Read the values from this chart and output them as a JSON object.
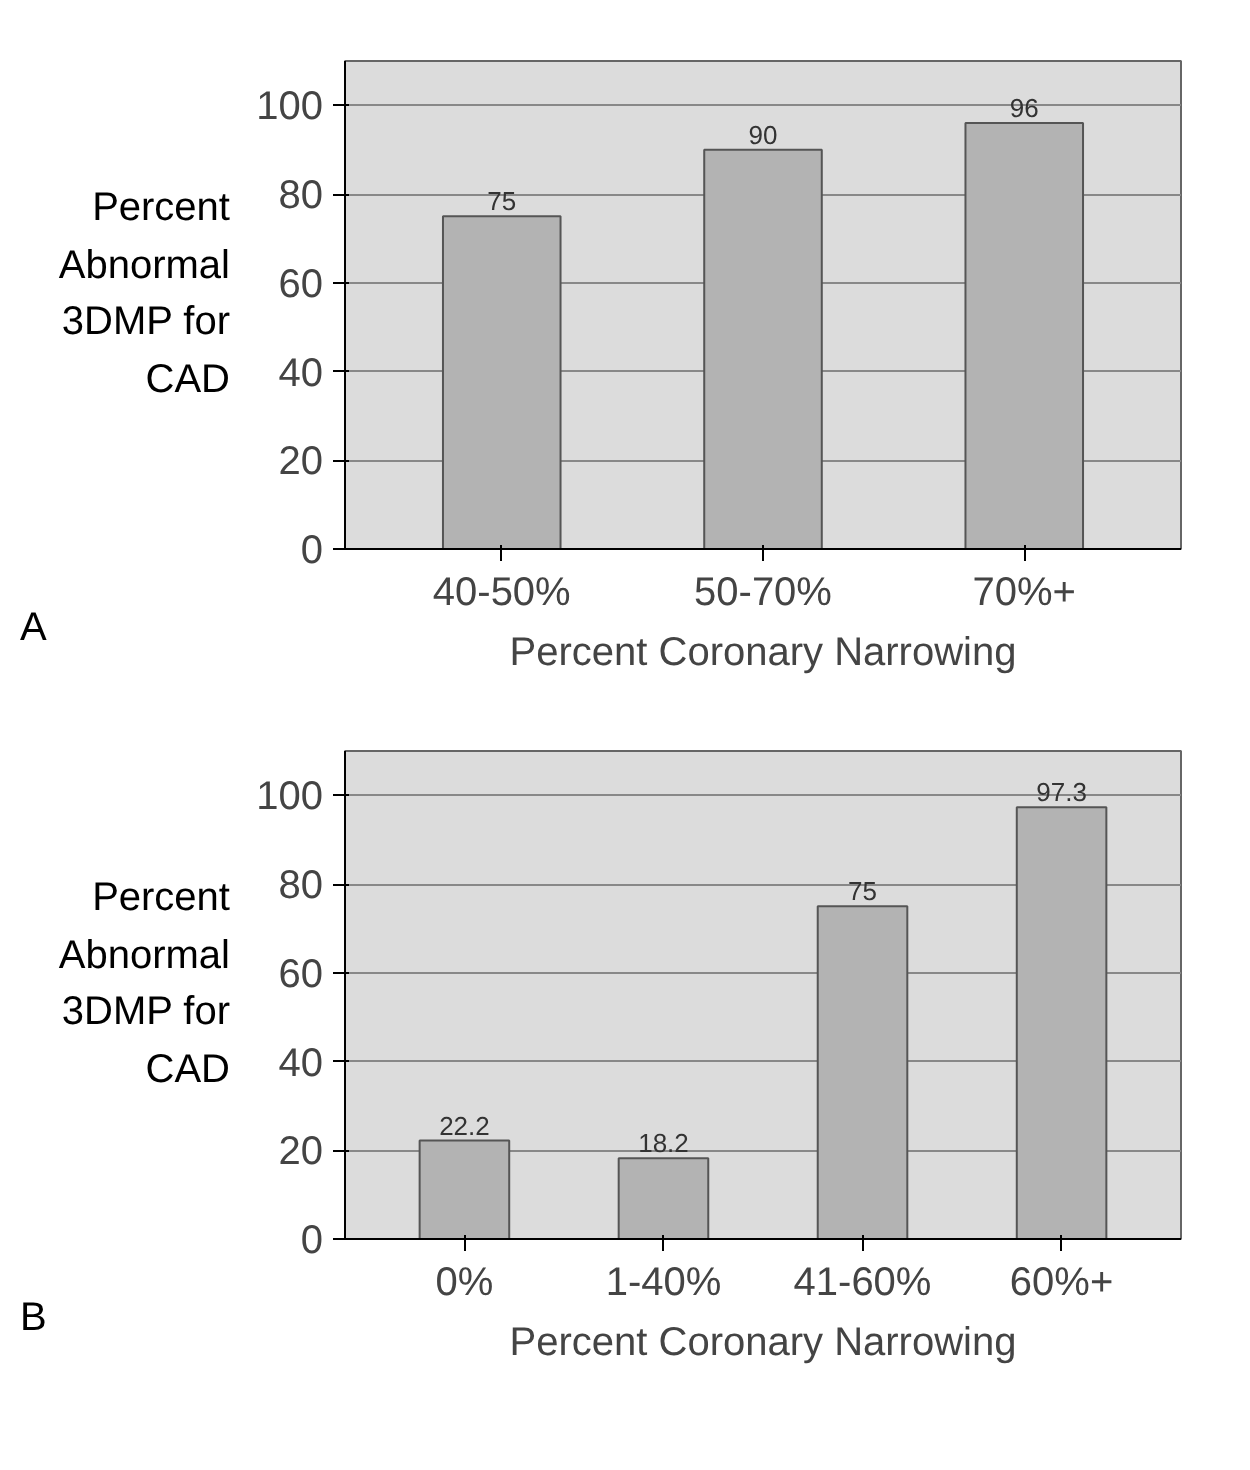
{
  "chart_data": [
    {
      "type": "bar",
      "ylabel": "Percent Abnormal 3DMP for CAD",
      "xlabel": "Percent Coronary Narrowing",
      "annotations": [
        "A"
      ],
      "categories": [
        "40-50%",
        "50-70%",
        "70%+"
      ],
      "values": [
        75,
        90,
        96
      ],
      "color": "#b3b3b3",
      "ylim": [
        0,
        110
      ],
      "yticks": [
        0,
        20,
        40,
        60,
        80,
        100
      ],
      "grid": "y",
      "data_labels": true
    },
    {
      "type": "bar",
      "ylabel": "Percent Abnormal 3DMP for CAD",
      "xlabel": "Percent Coronary Narrowing",
      "annotations": [
        "B"
      ],
      "categories": [
        "0%",
        "1-40%",
        "41-60%",
        "60%+"
      ],
      "values": [
        22.2,
        18.2,
        75,
        97.3
      ],
      "color": "#b3b3b3",
      "ylim": [
        0,
        110
      ],
      "yticks": [
        0,
        20,
        40,
        60,
        80,
        100
      ],
      "grid": "y",
      "data_labels": true
    }
  ]
}
